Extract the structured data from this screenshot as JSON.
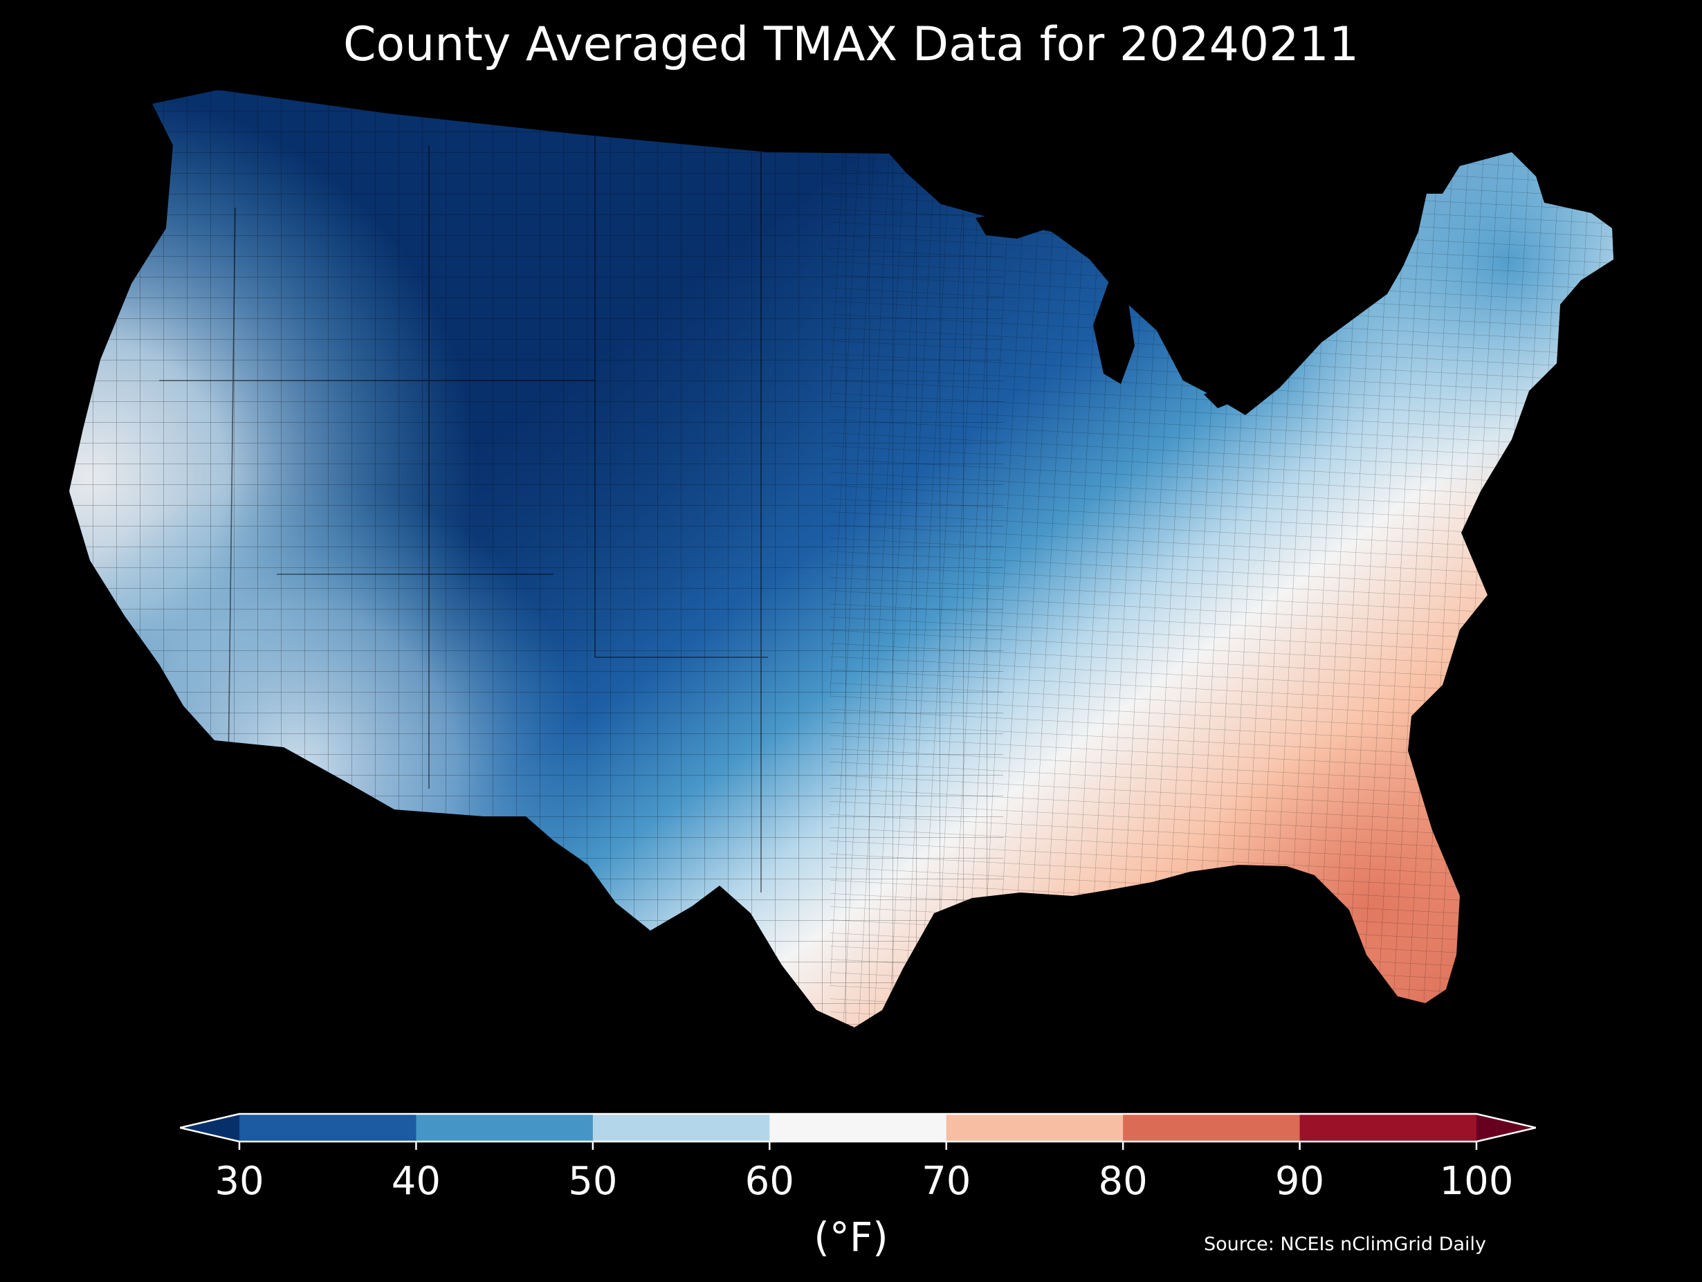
{
  "title": "County Averaged TMAX Data for 20240211",
  "map": {
    "region": "contiguous-united-states",
    "background": "#000000",
    "boundary_color": "#000000"
  },
  "colorbar": {
    "ticks": [
      "30",
      "40",
      "50",
      "60",
      "70",
      "80",
      "90",
      "100"
    ],
    "unit": "(°F)",
    "extend": "both",
    "bins": [
      {
        "range": [
          30,
          40
        ],
        "color": "#1c5aa1"
      },
      {
        "range": [
          40,
          50
        ],
        "color": "#4596c7"
      },
      {
        "range": [
          50,
          60
        ],
        "color": "#b4d6ea"
      },
      {
        "range": [
          60,
          70
        ],
        "color": "#f6f6f6"
      },
      {
        "range": [
          70,
          80
        ],
        "color": "#f8bea3"
      },
      {
        "range": [
          80,
          90
        ],
        "color": "#dc6b55"
      },
      {
        "range": [
          90,
          100
        ],
        "color": "#9a1128"
      }
    ],
    "under_color": "#07306b",
    "over_color": "#67001f"
  },
  "source": "Source: NCEIs nClimGrid Daily"
}
